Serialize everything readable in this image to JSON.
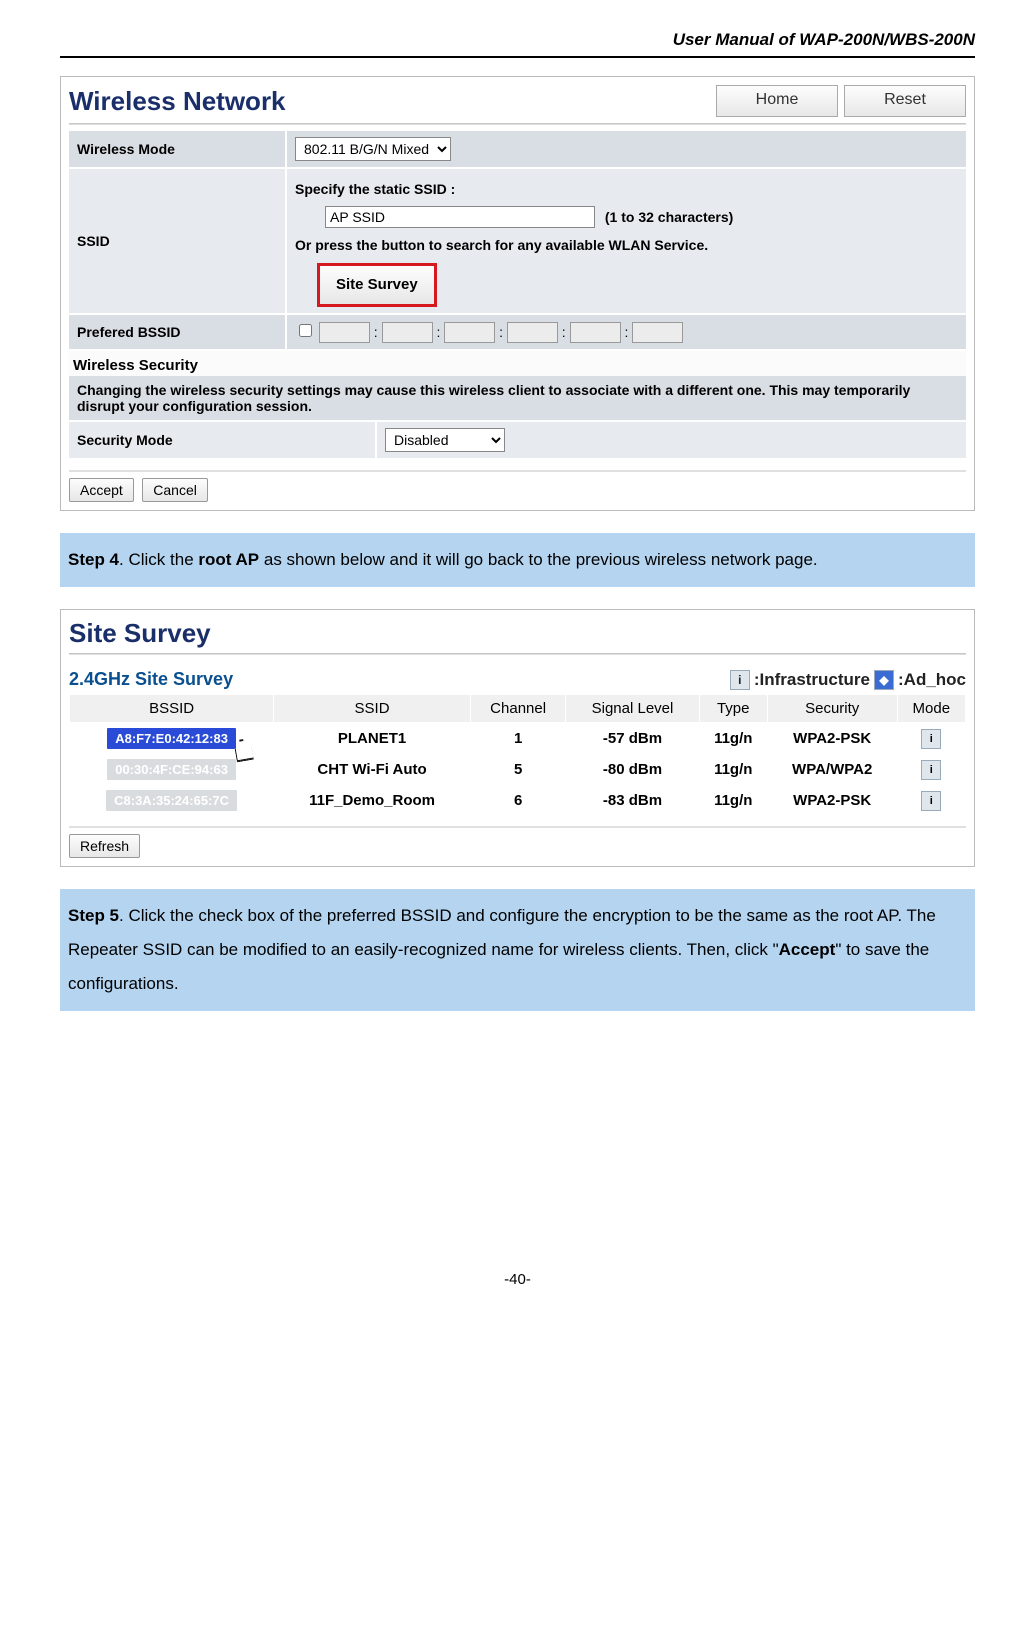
{
  "doc_header": "User Manual of WAP-200N/WBS-200N",
  "page_number": "-40-",
  "panel1": {
    "title": "Wireless Network",
    "home_btn": "Home",
    "reset_btn": "Reset",
    "wireless_mode_label": "Wireless Mode",
    "wireless_mode_value": "802.11 B/G/N Mixed",
    "ssid_label": "SSID",
    "ssid_line1": "Specify the static SSID  :",
    "ssid_input": "AP SSID",
    "ssid_hint": "(1 to 32 characters)",
    "ssid_line2": "Or press the button to search for any available WLAN Service.",
    "site_survey_btn": "Site Survey",
    "pref_bssid_label": "Prefered BSSID",
    "sec_section": "Wireless Security",
    "sec_warning": "Changing the wireless security settings may cause this wireless client to associate with a different one. This may temporarily disrupt your configuration session.",
    "sec_mode_label": "Security Mode",
    "sec_mode_value": "Disabled",
    "accept_btn": "Accept",
    "cancel_btn": "Cancel"
  },
  "step4": {
    "prefix": "Step 4",
    "t1": ". Click the ",
    "bold1": "root AP",
    "t2": " as shown below and it will go back to the previous wireless network page."
  },
  "survey": {
    "title": "Site Survey",
    "sub": "2.4GHz Site Survey",
    "legend_infra": ":Infrastructure",
    "legend_adhoc": ":Ad_hoc",
    "cols": [
      "BSSID",
      "SSID",
      "Channel",
      "Signal Level",
      "Type",
      "Security",
      "Mode"
    ],
    "rows": [
      {
        "bssid": "A8:F7:E0:42:12:83",
        "bg": "#2a4bd7",
        "ssid": "PLANET1",
        "ch": "1",
        "sig": "-57 dBm",
        "type": "11g/n",
        "sec": "WPA2-PSK",
        "cursor": true
      },
      {
        "bssid": "00:30:4F:CE:94:63",
        "bg": "#d9dcde",
        "ssid": "CHT Wi-Fi Auto",
        "ch": "5",
        "sig": "-80 dBm",
        "type": "11g/n",
        "sec": "WPA/WPA2",
        "cursor": false
      },
      {
        "bssid": "C8:3A:35:24:65:7C",
        "bg": "#d9dcde",
        "ssid": "11F_Demo_Room",
        "ch": "6",
        "sig": "-83 dBm",
        "type": "11g/n",
        "sec": "WPA2-PSK",
        "cursor": false
      }
    ],
    "refresh_btn": "Refresh"
  },
  "step5": {
    "prefix": "Step 5",
    "t1": ". Click the check box of the preferred BSSID and configure the encryption to be the same as the root AP. The Repeater SSID can be modified to an easily-recognized name for wireless clients. Then, click \"",
    "bold1": "Accept",
    "t2": "\" to save the configurations."
  }
}
